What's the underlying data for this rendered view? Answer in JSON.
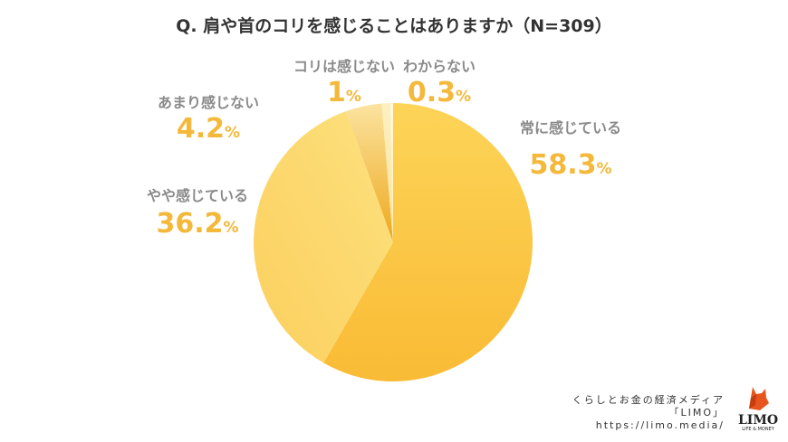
{
  "chart_data": {
    "type": "pie",
    "title": "Q. 肩や首のコリを感じることはありますか（N=309）",
    "start": "top",
    "direction": "clockwise",
    "slices": [
      {
        "label": "常に感じている",
        "value": 58.3,
        "color": "#fbc440"
      },
      {
        "label": "やや感じている",
        "value": 36.2,
        "color": "#fdd86c"
      },
      {
        "label": "あまり感じない",
        "value": 4.2,
        "color": "#f5cb5c"
      },
      {
        "label": "コリは感じない",
        "value": 1.0,
        "color": "#fdeeb0"
      },
      {
        "label": "わからない",
        "value": 0.3,
        "color": "#fff6d6"
      }
    ],
    "unit": "%"
  },
  "credit": {
    "line1": "くらしとお金の経済メディア",
    "line2": "「LIMO」",
    "url": "https://limo.media/"
  },
  "logo": {
    "word": "LIMO",
    "sub": "LIFE & MONEY"
  }
}
